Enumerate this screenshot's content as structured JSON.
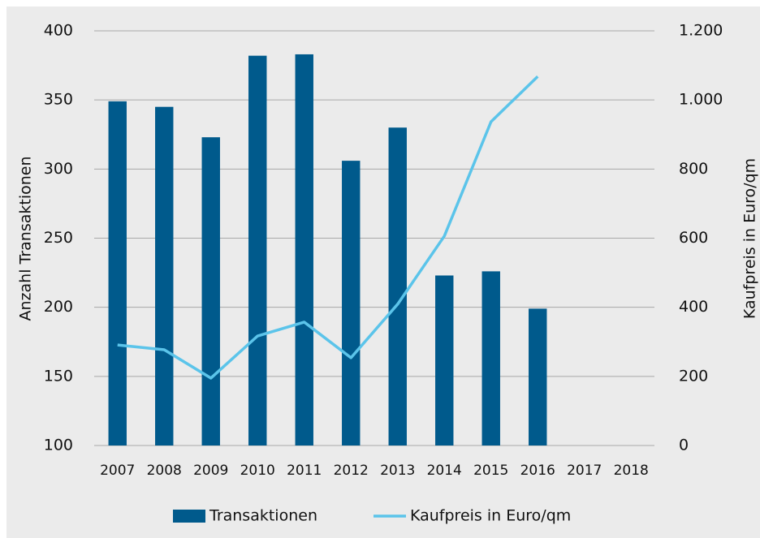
{
  "chart_data": {
    "type": "bar",
    "categories": [
      "2007",
      "2008",
      "2009",
      "2010",
      "2011",
      "2012",
      "2013",
      "2014",
      "2015",
      "2016",
      "2017",
      "2018"
    ],
    "series": [
      {
        "name": "Transaktionen",
        "type": "bar",
        "color": "#005a8c",
        "values": [
          349,
          345,
          323,
          382,
          383,
          306,
          330,
          223,
          226,
          199,
          null,
          null
        ]
      },
      {
        "name": "Kaufpreis in Euro/qm",
        "type": "line",
        "axis": "y2",
        "color": "#5bc4ea",
        "values": [
          291,
          277,
          195,
          317,
          357,
          254,
          409,
          606,
          937,
          1068,
          null,
          null
        ]
      }
    ],
    "ylabel": "Anzahl Transaktionen",
    "y2label": "Kaufpreis in Euro/qm",
    "ylim": [
      100,
      400
    ],
    "yticks": [
      100,
      150,
      200,
      250,
      300,
      350,
      400
    ],
    "y2lim": [
      0,
      1200
    ],
    "y2ticks": [
      0,
      200,
      400,
      600,
      800,
      {
        "value": 1000,
        "label": "1.000"
      },
      {
        "value": 1200,
        "label": "1.200"
      }
    ],
    "grid": true,
    "legend": "bottom"
  }
}
